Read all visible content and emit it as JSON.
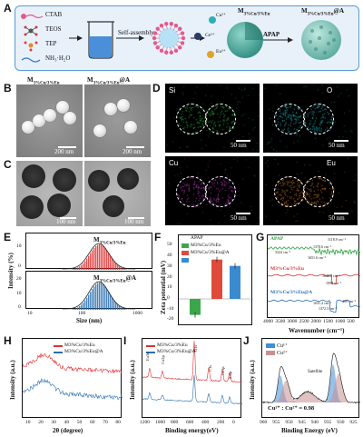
{
  "panel_labels": [
    "A",
    "B",
    "C",
    "D",
    "E",
    "F",
    "G",
    "H",
    "I",
    "J"
  ],
  "panelA": {
    "reagents": [
      "CTAB",
      "TEOS",
      "TEP",
      "NH₃·H₂O"
    ],
    "step1_label": "Self-assembly",
    "ions": [
      "Cu²⁺",
      "Ce³⁺",
      "Eu³⁺"
    ],
    "product1": "M",
    "product1_sub": "3%Cu/3%Eu",
    "step2_label": "APAP",
    "product2": "M",
    "product2_sub": "3%Cu/3%Eu",
    "product2_suffix": "@A",
    "colors": {
      "border": "#5b9bd5",
      "background": "#e8f1fa",
      "sphere": "#48a89c",
      "sphere2": "#8bc9c0"
    }
  },
  "panelB": {
    "label_left": "M",
    "label_left_sub": "3%Cu/3%Eu",
    "label_right": "M",
    "label_right_sub": "3%Cu/3%Eu",
    "label_right_suffix": "@A",
    "scale_left": "200 nm",
    "scale_right": "200 nm"
  },
  "panelC": {
    "scale_left": "100 nm",
    "scale_right": "100 nm"
  },
  "panelD": {
    "elements": [
      "Si",
      "O",
      "Cu",
      "Eu"
    ],
    "colors": [
      "#2fbf4a",
      "#2bc4cf",
      "#c43ec8",
      "#e0832b"
    ],
    "scales": [
      "50 nm",
      "50 nm",
      "50 nm",
      "50 nm"
    ]
  },
  "panelE": {
    "ylabel": "Intensity (%)",
    "xlabel": "Size (nm)",
    "top_label": "M",
    "top_label_sub": "3%Cu/3%Eu",
    "bottom_label": "M",
    "bottom_label_sub": "3%Cu/3%Eu",
    "bottom_label_suffix": "@A",
    "yticks_top": [
      "0",
      "10"
    ],
    "yticks_bottom": [
      "0",
      "10",
      "20"
    ],
    "xticks": [
      "10",
      "100",
      "1000"
    ],
    "colors": {
      "top": "#e03030",
      "bottom": "#2a6fb0"
    }
  },
  "panelF": {
    "ylabel": "Zeta potential (mV)",
    "legend": [
      "APAP",
      "M3%Cu/3%Eu",
      "M3%Cu/3%Eu@A"
    ],
    "yticks": [
      "-20",
      "-10",
      "0",
      "10",
      "20",
      "30",
      "40",
      "50"
    ],
    "colors": [
      "#3aa84a",
      "#e04a3a",
      "#3a8ad0"
    ]
  },
  "panelG": {
    "xlabel": "Wavenumber (cm⁻¹)",
    "labels": [
      "APAP",
      "M3%Cu/3%Eu",
      "M3%Cu/3%Eu@A"
    ],
    "peaks": [
      "3324 cm⁻¹",
      "1651.6 cm⁻¹",
      "1370.6 cm⁻¹",
      "1118.9 cm⁻¹",
      "1648.8 cm⁻¹",
      "1090 cm⁻¹",
      "1631.4 cm⁻¹",
      "1372.3 cm⁻¹",
      "450 cm⁻¹"
    ],
    "xticks": [
      "4000",
      "3500",
      "3000",
      "2500",
      "2000",
      "1500",
      "1000",
      "500"
    ],
    "colors": [
      "#2e9e3e",
      "#d93030",
      "#2a6fb0"
    ]
  },
  "panelH": {
    "ylabel": "Intensity (a.u.)",
    "xlabel": "2θ (degree)",
    "legend": [
      "M3%Cu/3%Eu",
      "M3%Cu/3%Eu@A"
    ],
    "xticks": [
      "10",
      "20",
      "30",
      "40",
      "50",
      "60",
      "70",
      "80"
    ],
    "colors": [
      "#e03030",
      "#2a6fb0"
    ]
  },
  "panelI": {
    "ylabel": "Intensity (a.u.)",
    "xlabel": "Binding energy(eV)",
    "legend": [
      "M3%Cu/3%Eu",
      "M3%Cu/3%Eu@A"
    ],
    "peaks": [
      "Eu3d",
      "Cu2p",
      "O1s",
      "C1s",
      "Ce3p",
      "Si2p"
    ],
    "xticks": [
      "1200",
      "1000",
      "800",
      "600",
      "400",
      "200",
      "0"
    ],
    "colors": [
      "#e03030",
      "#2a6fb0"
    ]
  },
  "panelJ": {
    "ylabel": "Intensity (a.u.)",
    "xlabel": "Binding Energy (eV)",
    "legend": [
      "Cu¹⁺",
      "Cu²⁺"
    ],
    "satellite": "Satellite",
    "ratio": "Cu¹⁺ : Cu²⁺ = 0.98",
    "xticks": [
      "960",
      "955",
      "950",
      "945",
      "940",
      "935",
      "930",
      "925"
    ],
    "colors": [
      "#3f8fd8",
      "#c89090"
    ]
  }
}
